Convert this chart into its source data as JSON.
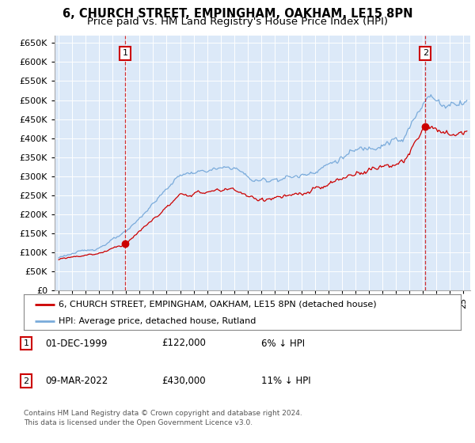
{
  "title": "6, CHURCH STREET, EMPINGHAM, OAKHAM, LE15 8PN",
  "subtitle": "Price paid vs. HM Land Registry's House Price Index (HPI)",
  "ytick_values": [
    0,
    50000,
    100000,
    150000,
    200000,
    250000,
    300000,
    350000,
    400000,
    450000,
    500000,
    550000,
    600000,
    650000
  ],
  "ylim": [
    0,
    670000
  ],
  "xlim_start": 1994.7,
  "xlim_end": 2025.5,
  "background_color": "#dce9f8",
  "grid_color": "#ffffff",
  "sale1_date_x": 1999.92,
  "sale1_price": 122000,
  "sale2_date_x": 2022.17,
  "sale2_price": 430000,
  "red_line_color": "#cc0000",
  "blue_line_color": "#7aabdb",
  "annotation_box_color": "#cc0000",
  "legend_label_red": "6, CHURCH STREET, EMPINGHAM, OAKHAM, LE15 8PN (detached house)",
  "legend_label_blue": "HPI: Average price, detached house, Rutland",
  "table_row1": [
    "1",
    "01-DEC-1999",
    "£122,000",
    "6% ↓ HPI"
  ],
  "table_row2": [
    "2",
    "09-MAR-2022",
    "£430,000",
    "11% ↓ HPI"
  ],
  "footer": "Contains HM Land Registry data © Crown copyright and database right 2024.\nThis data is licensed under the Open Government Licence v3.0.",
  "title_fontsize": 10.5,
  "subtitle_fontsize": 9.5,
  "tick_fontsize": 8,
  "legend_fontsize": 8,
  "table_fontsize": 8.5,
  "footer_fontsize": 6.5
}
